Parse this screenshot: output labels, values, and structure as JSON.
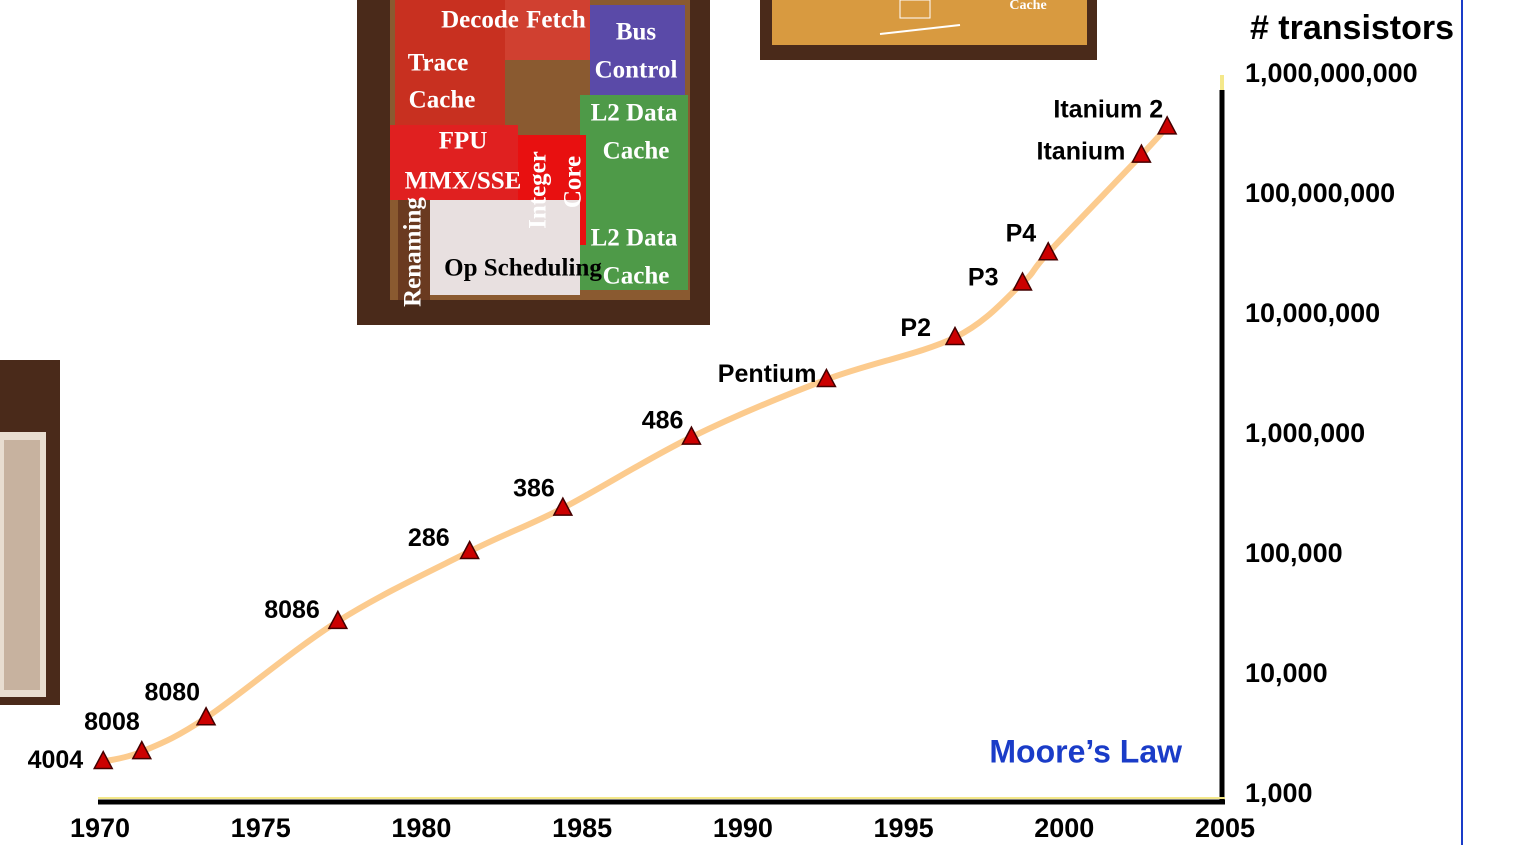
{
  "chart_data": {
    "type": "line",
    "y_label": "# transistors",
    "annotation": "Moore’s Law",
    "x": [
      1970.1,
      1971.3,
      1973.3,
      1977.4,
      1981.5,
      1984.4,
      1988.4,
      1992.6,
      1996.6,
      1998.7,
      1999.5,
      2002.4,
      2003.2
    ],
    "series": [
      {
        "labels": [
          "4004",
          "8008",
          "8080",
          "8086",
          "286",
          "386",
          "486",
          "Pentium",
          "P2",
          "P3",
          "P4",
          "Itanium",
          "Itanium 2"
        ],
        "color": "#fccb8e",
        "marker_color": "#cc0000",
        "values": [
          1900,
          2300,
          4400,
          28000,
          107000,
          246000,
          960000,
          2900000,
          6500000,
          18500000,
          33000000,
          215000000,
          370000000
        ]
      }
    ],
    "xlim": [
      1970,
      2005
    ],
    "xticks": [
      1970,
      1975,
      1980,
      1985,
      1990,
      1995,
      2000,
      2005
    ],
    "log_y": true,
    "ylim": [
      1000,
      1000000000
    ],
    "yticks": [
      {
        "value": 1000,
        "label": "1,000"
      },
      {
        "value": 10000,
        "label": "10,000"
      },
      {
        "value": 100000,
        "label": "100,000"
      },
      {
        "value": 1000000,
        "label": "1,000,000"
      },
      {
        "value": 10000000,
        "label": "10,000,000"
      },
      {
        "value": 100000000,
        "label": "100,000,000"
      },
      {
        "value": 1000000000,
        "label": "1,000,000,000"
      }
    ],
    "die_labels": [
      "Decode",
      "Fetch",
      "Bus",
      "Control",
      "Trace",
      "Cache",
      "L2 Data",
      "Cache",
      "FPU",
      "MMX/SSE",
      "Integer",
      "Core",
      "L2 Data",
      "Cache",
      "Renaming",
      "Op Scheduling"
    ],
    "top_die_label": "Cache"
  }
}
